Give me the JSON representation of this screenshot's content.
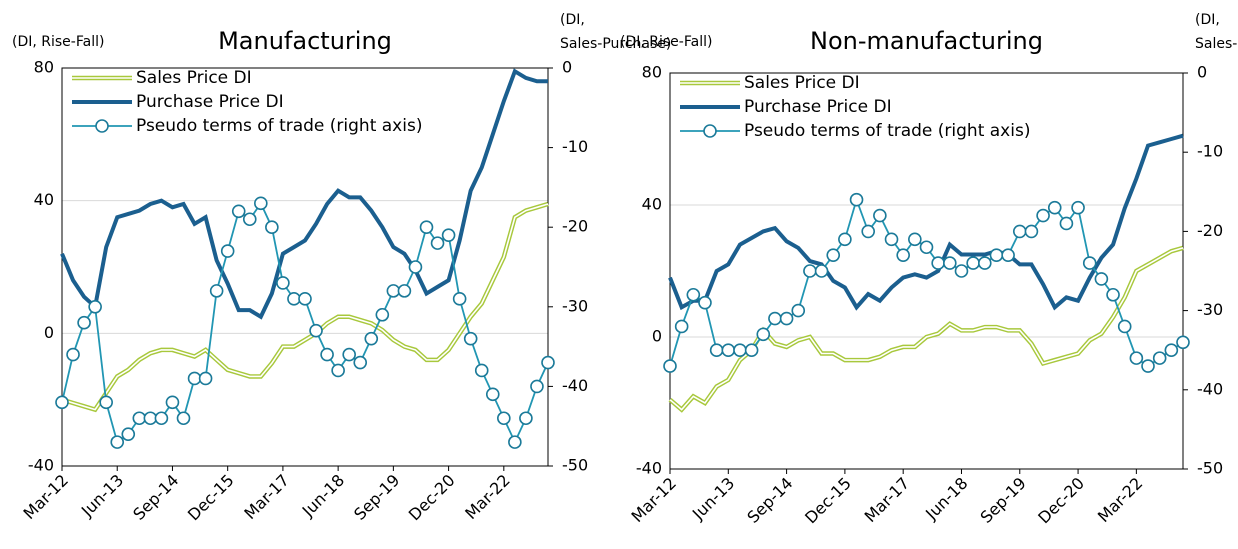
{
  "chart_data": [
    {
      "type": "line",
      "title": "Manufacturing",
      "y_label": "(DI, Rise-Fall)",
      "y2_label": [
        "(DI,",
        "Sales-Purchase)"
      ],
      "categories": [
        "Mar-12",
        null,
        null,
        null,
        null,
        "Jun-13",
        null,
        null,
        null,
        null,
        "Sep-14",
        null,
        null,
        null,
        null,
        "Dec-15",
        null,
        null,
        null,
        null,
        "Mar-17",
        null,
        null,
        null,
        null,
        "Jun-18",
        null,
        null,
        null,
        null,
        "Sep-19",
        null,
        null,
        null,
        null,
        "Dec-20",
        null,
        null,
        null,
        null,
        "Mar-22",
        null,
        null,
        null,
        null
      ],
      "ylim": [
        -40,
        80
      ],
      "yticks": [
        -40,
        0,
        40,
        80
      ],
      "y2lim": [
        -50,
        0
      ],
      "y2ticks": [
        -50,
        -40,
        -30,
        -20,
        -10,
        0
      ],
      "grid": true,
      "legend": "upper left",
      "series": [
        {
          "name": "Sales Price DI",
          "color": "#a8c83c",
          "values": [
            -20,
            -21,
            -22,
            -23,
            -18,
            -13,
            -11,
            -8,
            -6,
            -5,
            -5,
            -6,
            -7,
            -5,
            -8,
            -11,
            -12,
            -13,
            -13,
            -9,
            -4,
            -4,
            -2,
            0,
            3,
            5,
            5,
            4,
            3,
            1,
            -2,
            -4,
            -5,
            -8,
            -8,
            -5,
            0,
            5,
            9,
            16,
            23,
            35,
            37,
            38,
            39
          ]
        },
        {
          "name": "Purchase Price DI",
          "color": "#1b5f8f",
          "values": [
            24,
            16,
            11,
            8,
            26,
            35,
            36,
            37,
            39,
            40,
            38,
            39,
            33,
            35,
            22,
            15,
            7,
            7,
            5,
            12,
            24,
            26,
            28,
            33,
            39,
            43,
            41,
            41,
            37,
            32,
            26,
            24,
            19,
            12,
            14,
            16,
            28,
            43,
            50,
            60,
            70,
            79,
            77,
            76,
            76
          ]
        },
        {
          "name": "Pseudo terms of trade (right axis)",
          "color": "#2196b3",
          "axis": "y2",
          "values": [
            -42,
            -36,
            -32,
            -30,
            -42,
            -47,
            -46,
            -44,
            -44,
            -44,
            -42,
            -44,
            -39,
            -39,
            -28,
            -23,
            -18,
            -19,
            -17,
            -20,
            -27,
            -29,
            -29,
            -33,
            -36,
            -38,
            -36,
            -37,
            -34,
            -31,
            -28,
            -28,
            -25,
            -20,
            -22,
            -21,
            -29,
            -34,
            -38,
            -41,
            -44,
            -47,
            -44,
            -40,
            -37
          ]
        }
      ]
    },
    {
      "type": "line",
      "title": "Non-manufacturing",
      "y_label": "(DI, Rise-Fall)",
      "y2_label": [
        "(DI,",
        "Sales-Purchase)"
      ],
      "categories": [
        "Mar-12",
        null,
        null,
        null,
        null,
        "Jun-13",
        null,
        null,
        null,
        null,
        "Sep-14",
        null,
        null,
        null,
        null,
        "Dec-15",
        null,
        null,
        null,
        null,
        "Mar-17",
        null,
        null,
        null,
        null,
        "Jun-18",
        null,
        null,
        null,
        null,
        "Sep-19",
        null,
        null,
        null,
        null,
        "Dec-20",
        null,
        null,
        null,
        null,
        "Mar-22",
        null,
        null,
        null,
        null
      ],
      "ylim": [
        -40,
        80
      ],
      "yticks": [
        -40,
        0,
        40,
        80
      ],
      "y2lim": [
        -50,
        0
      ],
      "y2ticks": [
        -50,
        -40,
        -30,
        -20,
        -10,
        0
      ],
      "grid": true,
      "legend": "upper left",
      "series": [
        {
          "name": "Sales Price DI",
          "color": "#a8c83c",
          "values": [
            -19,
            -22,
            -18,
            -20,
            -15,
            -13,
            -7,
            -4,
            2,
            -2,
            -3,
            -1,
            0,
            -5,
            -5,
            -7,
            -7,
            -7,
            -6,
            -4,
            -3,
            -3,
            0,
            1,
            4,
            2,
            2,
            3,
            3,
            2,
            2,
            -2,
            -8,
            -7,
            -6,
            -5,
            -1,
            1,
            6,
            12,
            20,
            22,
            24,
            26,
            27
          ]
        },
        {
          "name": "Purchase Price DI",
          "color": "#1b5f8f",
          "values": [
            18,
            9,
            11,
            11,
            20,
            22,
            28,
            30,
            32,
            33,
            29,
            27,
            23,
            22,
            17,
            15,
            9,
            13,
            11,
            15,
            18,
            19,
            18,
            20,
            28,
            25,
            25,
            25,
            26,
            25,
            22,
            22,
            16,
            9,
            12,
            11,
            18,
            24,
            28,
            39,
            48,
            58,
            59,
            60,
            61
          ]
        },
        {
          "name": "Pseudo terms of trade (right axis)",
          "color": "#2196b3",
          "axis": "y2",
          "values": [
            -37,
            -32,
            -28,
            -29,
            -35,
            -35,
            -35,
            -35,
            -33,
            -31,
            -31,
            -30,
            -25,
            -25,
            -23,
            -21,
            -16,
            -20,
            -18,
            -21,
            -23,
            -21,
            -22,
            -24,
            -24,
            -25,
            -24,
            -24,
            -23,
            -23,
            -20,
            -20,
            -18,
            -17,
            -19,
            -17,
            -24,
            -26,
            -28,
            -32,
            -36,
            -37,
            -36,
            -35,
            -34
          ]
        }
      ]
    }
  ]
}
